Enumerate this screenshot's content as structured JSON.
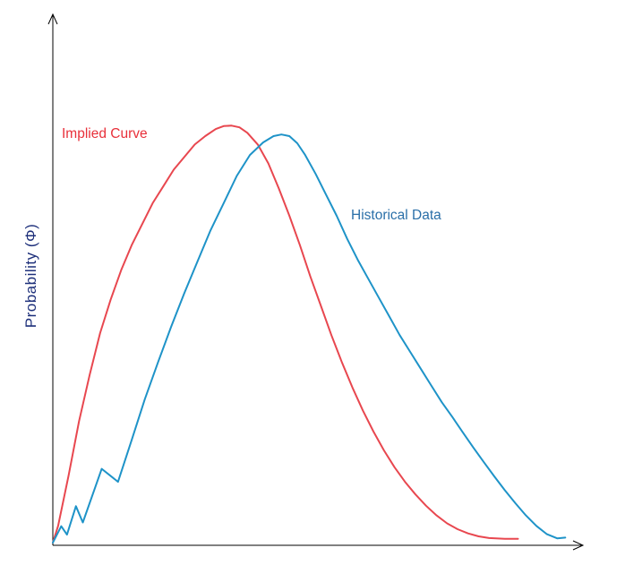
{
  "chart_data": {
    "type": "line",
    "title": "",
    "xlabel": "",
    "ylabel": "Probability (Φ)",
    "xlim": [
      0,
      100
    ],
    "ylim": [
      0,
      100
    ],
    "grid": false,
    "legend": "inline labels",
    "series": [
      {
        "name": "Implied Curve",
        "color": "#e8474f",
        "points": [
          [
            0,
            0
          ],
          [
            1,
            4
          ],
          [
            3,
            16
          ],
          [
            5,
            29
          ],
          [
            7,
            40
          ],
          [
            9,
            50
          ],
          [
            11,
            58
          ],
          [
            13,
            65
          ],
          [
            15,
            71
          ],
          [
            17,
            76
          ],
          [
            19,
            81
          ],
          [
            21,
            85
          ],
          [
            23,
            89
          ],
          [
            25,
            92
          ],
          [
            27,
            95
          ],
          [
            29,
            97
          ],
          [
            31,
            98.7
          ],
          [
            32.5,
            99.4
          ],
          [
            34,
            99.5
          ],
          [
            35.5,
            99.1
          ],
          [
            37,
            97.8
          ],
          [
            39,
            95
          ],
          [
            41,
            90.5
          ],
          [
            43,
            84.5
          ],
          [
            45,
            78
          ],
          [
            47,
            71
          ],
          [
            49,
            63.5
          ],
          [
            51,
            56.5
          ],
          [
            53,
            49.5
          ],
          [
            55,
            43
          ],
          [
            57,
            37
          ],
          [
            59,
            31.5
          ],
          [
            61,
            26.5
          ],
          [
            63,
            22
          ],
          [
            65,
            18
          ],
          [
            67,
            14.5
          ],
          [
            69,
            11.5
          ],
          [
            71,
            8.8
          ],
          [
            73,
            6.5
          ],
          [
            75,
            4.6
          ],
          [
            77,
            3.2
          ],
          [
            79,
            2.2
          ],
          [
            81,
            1.5
          ],
          [
            83,
            1.1
          ],
          [
            86,
            0.9
          ],
          [
            88.5,
            0.9
          ]
        ]
      },
      {
        "name": "Historical Data",
        "color": "#1e93c8",
        "points": [
          [
            0,
            0
          ],
          [
            1.6,
            3.9
          ],
          [
            2.7,
            1.9
          ],
          [
            4.4,
            8.7
          ],
          [
            5.7,
            4.8
          ],
          [
            9.3,
            17.6
          ],
          [
            12.4,
            14.5
          ],
          [
            15,
            24.5
          ],
          [
            17.5,
            34.2
          ],
          [
            20,
            43
          ],
          [
            22.5,
            51.5
          ],
          [
            25,
            59.5
          ],
          [
            27.5,
            67
          ],
          [
            30,
            74.5
          ],
          [
            32.5,
            81
          ],
          [
            35,
            87.5
          ],
          [
            37.5,
            92.5
          ],
          [
            40,
            95.5
          ],
          [
            42,
            97
          ],
          [
            43.5,
            97.4
          ],
          [
            45,
            97
          ],
          [
            46.5,
            95.3
          ],
          [
            48,
            92.5
          ],
          [
            50,
            88
          ],
          [
            52,
            83
          ],
          [
            54,
            78
          ],
          [
            56,
            72.5
          ],
          [
            58,
            67.5
          ],
          [
            60,
            63
          ],
          [
            62,
            58.5
          ],
          [
            64,
            54
          ],
          [
            66,
            49.5
          ],
          [
            68,
            45.5
          ],
          [
            70,
            41.5
          ],
          [
            72,
            37.5
          ],
          [
            74,
            33.5
          ],
          [
            76,
            30
          ],
          [
            78,
            26.3
          ],
          [
            80,
            22.7
          ],
          [
            82,
            19.2
          ],
          [
            84,
            15.8
          ],
          [
            86,
            12.5
          ],
          [
            88,
            9.4
          ],
          [
            90,
            6.5
          ],
          [
            92,
            4
          ],
          [
            94,
            2
          ],
          [
            96,
            1
          ],
          [
            97.5,
            1.2
          ]
        ]
      }
    ]
  }
}
